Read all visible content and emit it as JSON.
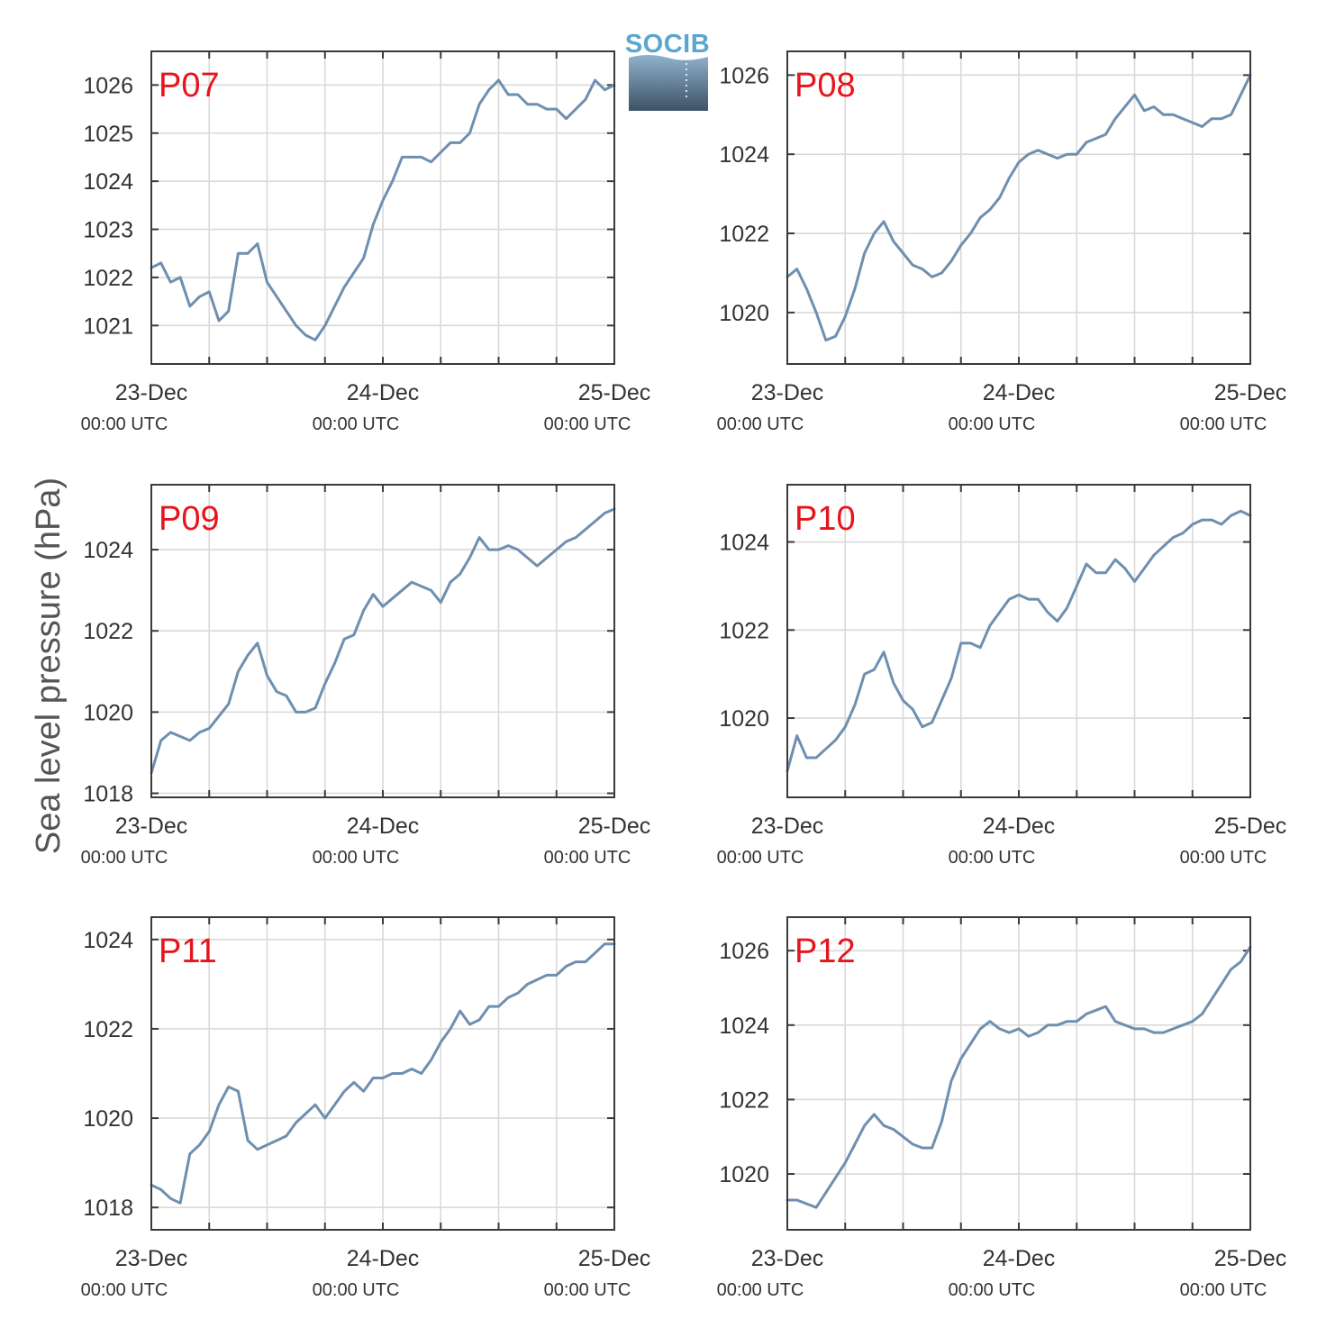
{
  "figure": {
    "logo_text": "SOCIB",
    "ylabel": "Sea level pressure (hPa)",
    "colors": {
      "series": "#6e8fb0",
      "panel_label": "#e8141c",
      "logo_text": "#5aa6cf",
      "logo_top": "#8fb3cc",
      "logo_bottom": "#3d5166",
      "grid": "#d9d9d9",
      "axis": "#3a3a3a"
    }
  },
  "chart_data": [
    {
      "type": "line",
      "panel": "P07",
      "title": "P07",
      "x_ticks": [
        {
          "date": "23-Dec",
          "time": "00:00 UTC"
        },
        {
          "date": "24-Dec",
          "time": "00:00 UTC"
        },
        {
          "date": "25-Dec",
          "time": "00:00 UTC"
        }
      ],
      "xlim": [
        "23-Dec 00:00",
        "25-Dec 00:00"
      ],
      "ylim": [
        1020.2,
        1026.7
      ],
      "y_ticks": [
        1021,
        1022,
        1023,
        1024,
        1025,
        1026
      ],
      "grid": true,
      "series": [
        {
          "x": [
            0,
            1,
            2,
            3,
            4,
            5,
            6,
            7,
            8,
            9,
            10,
            11,
            12,
            13,
            14,
            15,
            16,
            17,
            18,
            19,
            20,
            21,
            22,
            23,
            24,
            25,
            26,
            27,
            28,
            29,
            30,
            31,
            32,
            33,
            34,
            35,
            36,
            37,
            38,
            39,
            40,
            41,
            42,
            43,
            44,
            45,
            46,
            47,
            48
          ],
          "y": [
            1022.2,
            1022.3,
            1021.9,
            1022.0,
            1021.4,
            1021.6,
            1021.7,
            1021.1,
            1021.3,
            1022.5,
            1022.5,
            1022.7,
            1021.9,
            1021.6,
            1021.3,
            1021.0,
            1020.8,
            1020.7,
            1021.0,
            1021.4,
            1021.8,
            1022.1,
            1022.4,
            1023.1,
            1023.6,
            1024.0,
            1024.5,
            1024.5,
            1024.5,
            1024.4,
            1024.6,
            1024.8,
            1024.8,
            1025.0,
            1025.6,
            1025.9,
            1026.1,
            1025.8,
            1025.8,
            1025.6,
            1025.6,
            1025.5,
            1025.5,
            1025.3,
            1025.5,
            1025.7,
            1026.1,
            1025.9,
            1026.0
          ]
        }
      ]
    },
    {
      "type": "line",
      "panel": "P08",
      "title": "P08",
      "x_ticks": [
        {
          "date": "23-Dec",
          "time": "00:00 UTC"
        },
        {
          "date": "24-Dec",
          "time": "00:00 UTC"
        },
        {
          "date": "25-Dec",
          "time": "00:00 UTC"
        }
      ],
      "xlim": [
        "23-Dec 00:00",
        "25-Dec 00:00"
      ],
      "ylim": [
        1018.7,
        1026.6
      ],
      "y_ticks": [
        1020,
        1022,
        1024,
        1026
      ],
      "grid": true,
      "series": [
        {
          "x": [
            0,
            1,
            2,
            3,
            4,
            5,
            6,
            7,
            8,
            9,
            10,
            11,
            12,
            13,
            14,
            15,
            16,
            17,
            18,
            19,
            20,
            21,
            22,
            23,
            24,
            25,
            26,
            27,
            28,
            29,
            30,
            31,
            32,
            33,
            34,
            35,
            36,
            37,
            38,
            39,
            40,
            41,
            42,
            43,
            44,
            45,
            46,
            47,
            48
          ],
          "y": [
            1020.9,
            1021.1,
            1020.6,
            1020.0,
            1019.3,
            1019.4,
            1019.9,
            1020.6,
            1021.5,
            1022.0,
            1022.3,
            1021.8,
            1021.5,
            1021.2,
            1021.1,
            1020.9,
            1021.0,
            1021.3,
            1021.7,
            1022.0,
            1022.4,
            1022.6,
            1022.9,
            1023.4,
            1023.8,
            1024.0,
            1024.1,
            1024.0,
            1023.9,
            1024.0,
            1024.0,
            1024.3,
            1024.4,
            1024.5,
            1024.9,
            1025.2,
            1025.5,
            1025.1,
            1025.2,
            1025.0,
            1025.0,
            1024.9,
            1024.8,
            1024.7,
            1024.9,
            1024.9,
            1025.0,
            1025.5,
            1026.0
          ]
        }
      ]
    },
    {
      "type": "line",
      "panel": "P09",
      "title": "P09",
      "x_ticks": [
        {
          "date": "23-Dec",
          "time": "00:00 UTC"
        },
        {
          "date": "24-Dec",
          "time": "00:00 UTC"
        },
        {
          "date": "25-Dec",
          "time": "00:00 UTC"
        }
      ],
      "xlim": [
        "23-Dec 00:00",
        "25-Dec 00:00"
      ],
      "ylim": [
        1017.9,
        1025.6
      ],
      "y_ticks": [
        1018,
        1020,
        1022,
        1024
      ],
      "grid": true,
      "series": [
        {
          "x": [
            0,
            1,
            2,
            3,
            4,
            5,
            6,
            7,
            8,
            9,
            10,
            11,
            12,
            13,
            14,
            15,
            16,
            17,
            18,
            19,
            20,
            21,
            22,
            23,
            24,
            25,
            26,
            27,
            28,
            29,
            30,
            31,
            32,
            33,
            34,
            35,
            36,
            37,
            38,
            39,
            40,
            41,
            42,
            43,
            44,
            45,
            46,
            47,
            48
          ],
          "y": [
            1018.5,
            1019.3,
            1019.5,
            1019.4,
            1019.3,
            1019.5,
            1019.6,
            1019.9,
            1020.2,
            1021.0,
            1021.4,
            1021.7,
            1020.9,
            1020.5,
            1020.4,
            1020.0,
            1020.0,
            1020.1,
            1020.7,
            1021.2,
            1021.8,
            1021.9,
            1022.5,
            1022.9,
            1022.6,
            1022.8,
            1023.0,
            1023.2,
            1023.1,
            1023.0,
            1022.7,
            1023.2,
            1023.4,
            1023.8,
            1024.3,
            1024.0,
            1024.0,
            1024.1,
            1024.0,
            1023.8,
            1023.6,
            1023.8,
            1024.0,
            1024.2,
            1024.3,
            1024.5,
            1024.7,
            1024.9,
            1025.0
          ]
        }
      ]
    },
    {
      "type": "line",
      "panel": "P10",
      "title": "P10",
      "x_ticks": [
        {
          "date": "23-Dec",
          "time": "00:00 UTC"
        },
        {
          "date": "24-Dec",
          "time": "00:00 UTC"
        },
        {
          "date": "25-Dec",
          "time": "00:00 UTC"
        }
      ],
      "xlim": [
        "23-Dec 00:00",
        "25-Dec 00:00"
      ],
      "ylim": [
        1018.2,
        1025.3
      ],
      "y_ticks": [
        1020,
        1022,
        1024
      ],
      "grid": true,
      "series": [
        {
          "x": [
            0,
            1,
            2,
            3,
            4,
            5,
            6,
            7,
            8,
            9,
            10,
            11,
            12,
            13,
            14,
            15,
            16,
            17,
            18,
            19,
            20,
            21,
            22,
            23,
            24,
            25,
            26,
            27,
            28,
            29,
            30,
            31,
            32,
            33,
            34,
            35,
            36,
            37,
            38,
            39,
            40,
            41,
            42,
            43,
            44,
            45,
            46,
            47,
            48
          ],
          "y": [
            1018.8,
            1019.6,
            1019.1,
            1019.1,
            1019.3,
            1019.5,
            1019.8,
            1020.3,
            1021.0,
            1021.1,
            1021.5,
            1020.8,
            1020.4,
            1020.2,
            1019.8,
            1019.9,
            1020.4,
            1020.9,
            1021.7,
            1021.7,
            1021.6,
            1022.1,
            1022.4,
            1022.7,
            1022.8,
            1022.7,
            1022.7,
            1022.4,
            1022.2,
            1022.5,
            1023.0,
            1023.5,
            1023.3,
            1023.3,
            1023.6,
            1023.4,
            1023.1,
            1023.4,
            1023.7,
            1023.9,
            1024.1,
            1024.2,
            1024.4,
            1024.5,
            1024.5,
            1024.4,
            1024.6,
            1024.7,
            1024.6
          ]
        }
      ]
    },
    {
      "type": "line",
      "panel": "P11",
      "title": "P11",
      "x_ticks": [
        {
          "date": "23-Dec",
          "time": "00:00 UTC"
        },
        {
          "date": "24-Dec",
          "time": "00:00 UTC"
        },
        {
          "date": "25-Dec",
          "time": "00:00 UTC"
        }
      ],
      "xlim": [
        "23-Dec 00:00",
        "25-Dec 00:00"
      ],
      "ylim": [
        1017.5,
        1024.5
      ],
      "y_ticks": [
        1018,
        1020,
        1022,
        1024
      ],
      "grid": true,
      "series": [
        {
          "x": [
            0,
            1,
            2,
            3,
            4,
            5,
            6,
            7,
            8,
            9,
            10,
            11,
            12,
            13,
            14,
            15,
            16,
            17,
            18,
            19,
            20,
            21,
            22,
            23,
            24,
            25,
            26,
            27,
            28,
            29,
            30,
            31,
            32,
            33,
            34,
            35,
            36,
            37,
            38,
            39,
            40,
            41,
            42,
            43,
            44,
            45,
            46,
            47,
            48
          ],
          "y": [
            1018.5,
            1018.4,
            1018.2,
            1018.1,
            1019.2,
            1019.4,
            1019.7,
            1020.3,
            1020.7,
            1020.6,
            1019.5,
            1019.3,
            1019.4,
            1019.5,
            1019.6,
            1019.9,
            1020.1,
            1020.3,
            1020.0,
            1020.3,
            1020.6,
            1020.8,
            1020.6,
            1020.9,
            1020.9,
            1021.0,
            1021.0,
            1021.1,
            1021.0,
            1021.3,
            1021.7,
            1022.0,
            1022.4,
            1022.1,
            1022.2,
            1022.5,
            1022.5,
            1022.7,
            1022.8,
            1023.0,
            1023.1,
            1023.2,
            1023.2,
            1023.4,
            1023.5,
            1023.5,
            1023.7,
            1023.9,
            1023.9
          ]
        }
      ]
    },
    {
      "type": "line",
      "panel": "P12",
      "title": "P12",
      "x_ticks": [
        {
          "date": "23-Dec",
          "time": "00:00 UTC"
        },
        {
          "date": "24-Dec",
          "time": "00:00 UTC"
        },
        {
          "date": "25-Dec",
          "time": "00:00 UTC"
        }
      ],
      "xlim": [
        "23-Dec 00:00",
        "25-Dec 00:00"
      ],
      "ylim": [
        1018.5,
        1026.9
      ],
      "y_ticks": [
        1020,
        1022,
        1024,
        1026
      ],
      "grid": true,
      "series": [
        {
          "x": [
            0,
            1,
            2,
            3,
            4,
            5,
            6,
            7,
            8,
            9,
            10,
            11,
            12,
            13,
            14,
            15,
            16,
            17,
            18,
            19,
            20,
            21,
            22,
            23,
            24,
            25,
            26,
            27,
            28,
            29,
            30,
            31,
            32,
            33,
            34,
            35,
            36,
            37,
            38,
            39,
            40,
            41,
            42,
            43,
            44,
            45,
            46,
            47,
            48
          ],
          "y": [
            1019.3,
            1019.3,
            1019.2,
            1019.1,
            1019.5,
            1019.9,
            1020.3,
            1020.8,
            1021.3,
            1021.6,
            1021.3,
            1021.2,
            1021.0,
            1020.8,
            1020.7,
            1020.7,
            1021.4,
            1022.5,
            1023.1,
            1023.5,
            1023.9,
            1024.1,
            1023.9,
            1023.8,
            1023.9,
            1023.7,
            1023.8,
            1024.0,
            1024.0,
            1024.1,
            1024.1,
            1024.3,
            1024.4,
            1024.5,
            1024.1,
            1024.0,
            1023.9,
            1023.9,
            1023.8,
            1023.8,
            1023.9,
            1024.0,
            1024.1,
            1024.3,
            1024.7,
            1025.1,
            1025.5,
            1025.7,
            1026.1
          ]
        }
      ]
    }
  ]
}
